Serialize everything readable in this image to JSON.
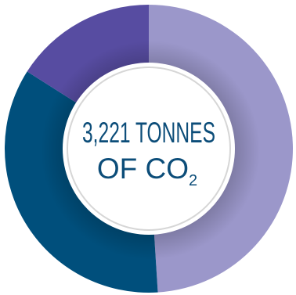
{
  "chart_data": {
    "type": "pie",
    "style": "donut",
    "slices": [
      {
        "value": 49,
        "color": "#9b97ca"
      },
      {
        "value": 35,
        "color": "#004f7c"
      },
      {
        "value": 16,
        "color": "#574ca1"
      }
    ],
    "start_angle_deg": 0,
    "direction": "clockwise",
    "center_label": {
      "line1": "3,221 TONNES",
      "line2_text": "OF CO",
      "line2_subscript": "2",
      "color": "#0c4d79"
    },
    "center_ring_color": "#d6d6d6",
    "legend": "none"
  }
}
